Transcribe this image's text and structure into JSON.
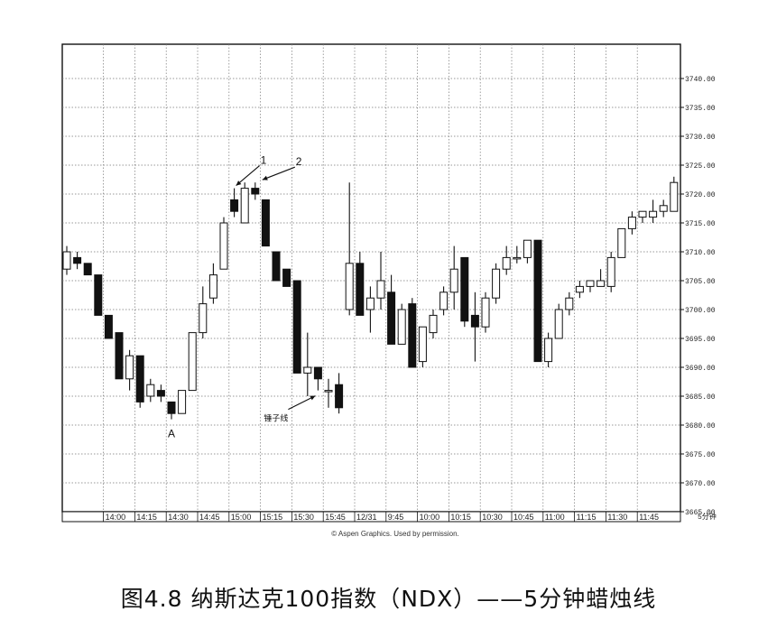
{
  "figure_caption": "图4.8 纳斯达克100指数（NDX）——5分钟蜡烛线",
  "credit": "© Aspen Graphics. Used by permission.",
  "chart_data": {
    "type": "candlestick",
    "y_unit_label": "5分钟",
    "ylim": [
      3665,
      3745
    ],
    "y_ticks": [
      "3665.00",
      "3670.00",
      "3675.00",
      "3680.00",
      "3685.00",
      "3690.00",
      "3695.00",
      "3700.00",
      "3705.00",
      "3710.00",
      "3715.00",
      "3720.00",
      "3725.00",
      "3730.00",
      "3735.00",
      "3740.00"
    ],
    "x_ticks": [
      {
        "index": 4,
        "label": "14:00"
      },
      {
        "index": 7,
        "label": "14:15"
      },
      {
        "index": 10,
        "label": "14:30"
      },
      {
        "index": 13,
        "label": "14:45"
      },
      {
        "index": 16,
        "label": "15:00"
      },
      {
        "index": 19,
        "label": "15:15"
      },
      {
        "index": 22,
        "label": "15:30"
      },
      {
        "index": 25,
        "label": "15:45"
      },
      {
        "index": 28,
        "label": "12/31"
      },
      {
        "index": 31,
        "label": "9:45"
      },
      {
        "index": 34,
        "label": "10:00"
      },
      {
        "index": 37,
        "label": "10:15"
      },
      {
        "index": 40,
        "label": "10:30"
      },
      {
        "index": 43,
        "label": "10:45"
      },
      {
        "index": 46,
        "label": "11:00"
      },
      {
        "index": 49,
        "label": "11:15"
      },
      {
        "index": 52,
        "label": "11:30"
      },
      {
        "index": 55,
        "label": "11:45"
      }
    ],
    "grid": true,
    "grid_style": "dotted",
    "bullish_color": "#ffffff",
    "bearish_color": "#111111",
    "candles": [
      {
        "o": 3707,
        "h": 3711,
        "l": 3706,
        "c": 3710
      },
      {
        "o": 3709,
        "h": 3710,
        "l": 3707,
        "c": 3708
      },
      {
        "o": 3708,
        "h": 3708,
        "l": 3706,
        "c": 3706
      },
      {
        "o": 3706,
        "h": 3706,
        "l": 3699,
        "c": 3699
      },
      {
        "o": 3699,
        "h": 3699,
        "l": 3695,
        "c": 3695
      },
      {
        "o": 3696,
        "h": 3696,
        "l": 3688,
        "c": 3688
      },
      {
        "o": 3688,
        "h": 3693,
        "l": 3686,
        "c": 3692
      },
      {
        "o": 3692,
        "h": 3692,
        "l": 3683,
        "c": 3684
      },
      {
        "o": 3685,
        "h": 3688,
        "l": 3684,
        "c": 3687
      },
      {
        "o": 3686,
        "h": 3687,
        "l": 3684,
        "c": 3685
      },
      {
        "o": 3684,
        "h": 3684,
        "l": 3681,
        "c": 3682
      },
      {
        "o": 3682,
        "h": 3686,
        "l": 3682,
        "c": 3686
      },
      {
        "o": 3686,
        "h": 3696,
        "l": 3686,
        "c": 3696
      },
      {
        "o": 3696,
        "h": 3704,
        "l": 3695,
        "c": 3701
      },
      {
        "o": 3702,
        "h": 3708,
        "l": 3701,
        "c": 3706
      },
      {
        "o": 3707,
        "h": 3716,
        "l": 3707,
        "c": 3715
      },
      {
        "o": 3719,
        "h": 3721,
        "l": 3716,
        "c": 3717
      },
      {
        "o": 3715,
        "h": 3722,
        "l": 3715,
        "c": 3721
      },
      {
        "o": 3721,
        "h": 3722,
        "l": 3719,
        "c": 3720
      },
      {
        "o": 3719,
        "h": 3719,
        "l": 3711,
        "c": 3711
      },
      {
        "o": 3710,
        "h": 3710,
        "l": 3705,
        "c": 3705
      },
      {
        "o": 3707,
        "h": 3707,
        "l": 3704,
        "c": 3704
      },
      {
        "o": 3705,
        "h": 3705,
        "l": 3689,
        "c": 3689
      },
      {
        "o": 3689,
        "h": 3696,
        "l": 3685,
        "c": 3690
      },
      {
        "o": 3690,
        "h": 3690,
        "l": 3686,
        "c": 3688
      },
      {
        "o": 3686,
        "h": 3688,
        "l": 3683,
        "c": 3686
      },
      {
        "o": 3687,
        "h": 3689,
        "l": 3682,
        "c": 3683
      },
      {
        "o": 3700,
        "h": 3722,
        "l": 3699,
        "c": 3708
      },
      {
        "o": 3708,
        "h": 3710,
        "l": 3699,
        "c": 3699
      },
      {
        "o": 3700,
        "h": 3704,
        "l": 3696,
        "c": 3702
      },
      {
        "o": 3702,
        "h": 3710,
        "l": 3700,
        "c": 3705
      },
      {
        "o": 3703,
        "h": 3706,
        "l": 3694,
        "c": 3694
      },
      {
        "o": 3694,
        "h": 3701,
        "l": 3694,
        "c": 3700
      },
      {
        "o": 3701,
        "h": 3702,
        "l": 3690,
        "c": 3690
      },
      {
        "o": 3691,
        "h": 3697,
        "l": 3690,
        "c": 3697
      },
      {
        "o": 3696,
        "h": 3700,
        "l": 3695,
        "c": 3699
      },
      {
        "o": 3700,
        "h": 3704,
        "l": 3699,
        "c": 3703
      },
      {
        "o": 3703,
        "h": 3711,
        "l": 3700,
        "c": 3707
      },
      {
        "o": 3709,
        "h": 3709,
        "l": 3697,
        "c": 3698
      },
      {
        "o": 3699,
        "h": 3703,
        "l": 3691,
        "c": 3697
      },
      {
        "o": 3697,
        "h": 3703,
        "l": 3696,
        "c": 3702
      },
      {
        "o": 3702,
        "h": 3708,
        "l": 3701,
        "c": 3707
      },
      {
        "o": 3707,
        "h": 3711,
        "l": 3706,
        "c": 3709
      },
      {
        "o": 3709,
        "h": 3711,
        "l": 3708,
        "c": 3709
      },
      {
        "o": 3709,
        "h": 3712,
        "l": 3708,
        "c": 3712
      },
      {
        "o": 3712,
        "h": 3712,
        "l": 3691,
        "c": 3691
      },
      {
        "o": 3691,
        "h": 3696,
        "l": 3690,
        "c": 3695
      },
      {
        "o": 3695,
        "h": 3701,
        "l": 3695,
        "c": 3700
      },
      {
        "o": 3700,
        "h": 3703,
        "l": 3699,
        "c": 3702
      },
      {
        "o": 3703,
        "h": 3705,
        "l": 3702,
        "c": 3704
      },
      {
        "o": 3704,
        "h": 3705,
        "l": 3703,
        "c": 3705
      },
      {
        "o": 3704,
        "h": 3707,
        "l": 3704,
        "c": 3705
      },
      {
        "o": 3704,
        "h": 3710,
        "l": 3703,
        "c": 3709
      },
      {
        "o": 3709,
        "h": 3714,
        "l": 3709,
        "c": 3714
      },
      {
        "o": 3714,
        "h": 3717,
        "l": 3713,
        "c": 3716
      },
      {
        "o": 3716,
        "h": 3717,
        "l": 3715,
        "c": 3717
      },
      {
        "o": 3716,
        "h": 3719,
        "l": 3715,
        "c": 3717
      },
      {
        "o": 3717,
        "h": 3719,
        "l": 3716,
        "c": 3718
      },
      {
        "o": 3717,
        "h": 3723,
        "l": 3717,
        "c": 3722
      }
    ],
    "annotations": [
      {
        "label": "1",
        "index": 16
      },
      {
        "label": "2",
        "index": 18
      },
      {
        "label": "A",
        "index": 10
      },
      {
        "label": "锤子线",
        "index": 24
      }
    ]
  }
}
